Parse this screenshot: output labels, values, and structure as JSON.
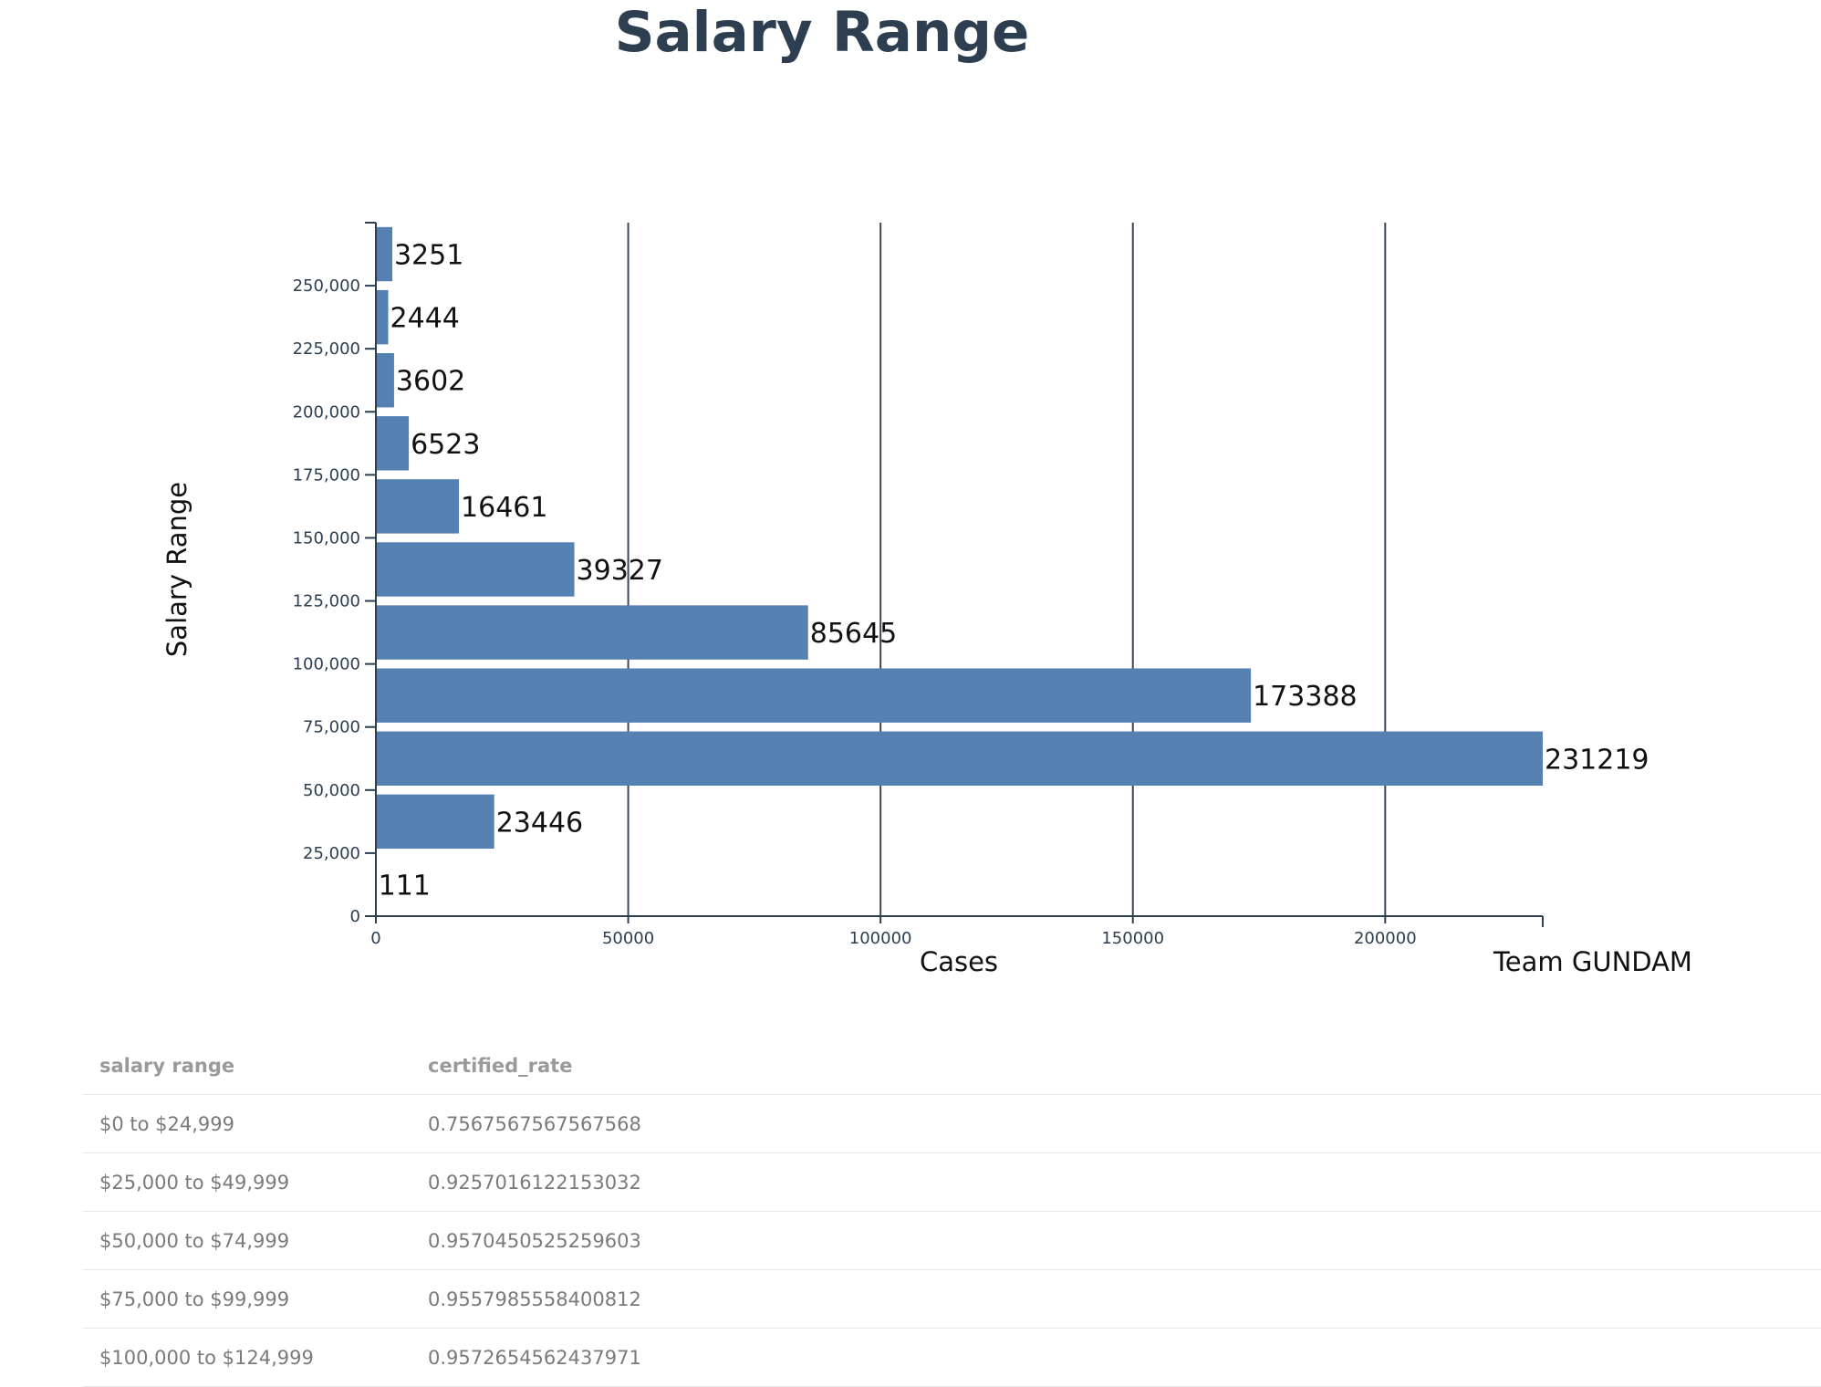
{
  "chart_data": {
    "type": "bar",
    "orientation": "horizontal",
    "title": "Salary Range",
    "xlabel": "Cases",
    "ylabel": "Salary Range",
    "credit": "Team GUNDAM",
    "categories": [
      0,
      25000,
      50000,
      75000,
      100000,
      125000,
      150000,
      175000,
      200000,
      225000,
      250000
    ],
    "values": [
      111,
      23446,
      231219,
      173388,
      85645,
      39327,
      16461,
      6523,
      3602,
      2444,
      3251
    ],
    "x_ticks": [
      "0",
      "50000",
      "100000",
      "150000",
      "200000"
    ],
    "x_tick_values": [
      0,
      50000,
      100000,
      150000,
      200000
    ],
    "y_ticks": [
      "0",
      "25,000",
      "50,000",
      "75,000",
      "100,000",
      "125,000",
      "150,000",
      "175,000",
      "200,000",
      "225,000",
      "250,000"
    ],
    "y_tick_values": [
      0,
      25000,
      50000,
      75000,
      100000,
      125000,
      150000,
      175000,
      200000,
      225000,
      250000
    ],
    "xlim": [
      0,
      231219
    ],
    "ylim": [
      0,
      275000
    ],
    "grid": "vertical",
    "bar_color": "#5481b1",
    "grid_color": "#3d4655"
  },
  "table": {
    "headers": [
      "salary range",
      "certified_rate"
    ],
    "rows": [
      [
        "$0 to $24,999",
        "0.7567567567567568"
      ],
      [
        "$25,000 to $49,999",
        "0.9257016122153032"
      ],
      [
        "$50,000 to $74,999",
        "0.9570450525259603"
      ],
      [
        "$75,000 to $99,999",
        "0.9557985558400812"
      ],
      [
        "$100,000 to $124,999",
        "0.9572654562437971"
      ]
    ]
  }
}
